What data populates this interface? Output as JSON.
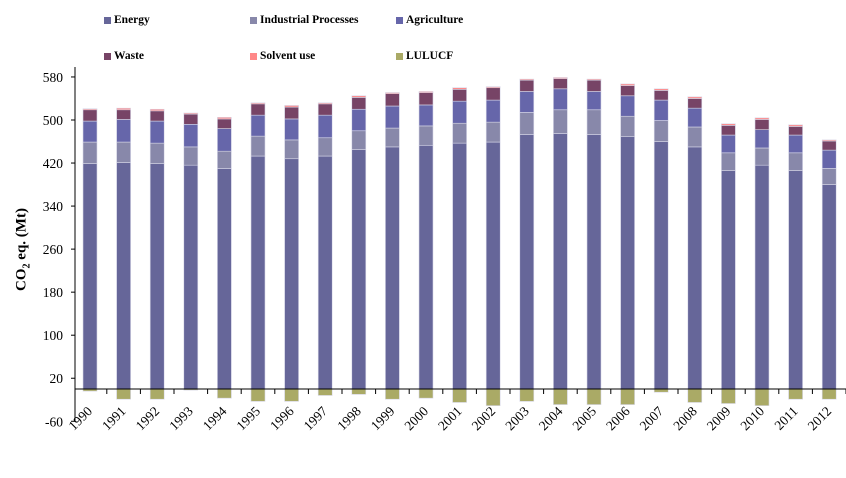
{
  "chart_data": {
    "type": "bar",
    "stacked": true,
    "ylabel": "CO2 eq. (Mt)",
    "ylabel_main": "CO",
    "ylabel_sub": "2",
    "ylabel_rest": " eq. (Mt)",
    "ylim": [
      -60,
      580
    ],
    "yticks": [
      -60,
      20,
      100,
      180,
      260,
      340,
      420,
      500,
      580
    ],
    "grid": false,
    "legend_placement": "top",
    "categories": [
      "1990",
      "1991",
      "1992",
      "1993",
      "1994",
      "1995",
      "1996",
      "1997",
      "1998",
      "1999",
      "2000",
      "2001",
      "2002",
      "2003",
      "2004",
      "2005",
      "2006",
      "2007",
      "2008",
      "2009",
      "2010",
      "2011",
      "2012"
    ],
    "series": [
      {
        "name": "Energy",
        "color": "#666699",
        "values": [
          419,
          421,
          419,
          416,
          410,
          433,
          428,
          433,
          445,
          450,
          453,
          457,
          459,
          473,
          475,
          473,
          469,
          460,
          450,
          406,
          416,
          406,
          380
        ]
      },
      {
        "name": "Industrial Processes",
        "color": "#8888aa",
        "values": [
          40,
          38,
          38,
          34,
          32,
          37,
          35,
          34,
          35,
          35,
          36,
          37,
          37,
          41,
          44,
          46,
          38,
          39,
          37,
          33,
          32,
          33,
          30
        ]
      },
      {
        "name": "Agriculture",
        "color": "#6666aa",
        "values": [
          39,
          42,
          41,
          42,
          42,
          39,
          39,
          42,
          40,
          41,
          39,
          41,
          41,
          39,
          39,
          34,
          38,
          38,
          35,
          33,
          34,
          33,
          34
        ]
      },
      {
        "name": "Waste",
        "color": "#774466",
        "values": [
          21,
          18,
          19,
          19,
          18,
          21,
          22,
          21,
          22,
          23,
          23,
          22,
          23,
          21,
          19,
          21,
          19,
          18,
          18,
          18,
          19,
          16,
          17
        ]
      },
      {
        "name": "Solvent use",
        "color": "#ff8888",
        "values": [
          2,
          3,
          3,
          2,
          3,
          2,
          3,
          2,
          3,
          2,
          2,
          3,
          2,
          2,
          2,
          2,
          3,
          3,
          3,
          3,
          3,
          3,
          2
        ]
      },
      {
        "name": "LULUCF",
        "color": "#aaaa66",
        "values": [
          -4,
          -19,
          -19,
          -2,
          -17,
          -23,
          -23,
          -12,
          -10,
          -19,
          -17,
          -25,
          -31,
          -23,
          -29,
          -29,
          -29,
          -6,
          -25,
          -27,
          -31,
          -19,
          -19
        ]
      }
    ]
  }
}
